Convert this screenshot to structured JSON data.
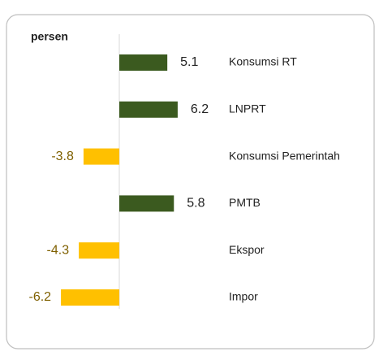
{
  "chart_data": {
    "type": "bar",
    "orientation": "horizontal",
    "unit_label": "persen",
    "categories": [
      "Konsumsi RT",
      "LNPRT",
      "Konsumsi Pemerintah",
      "PMTB",
      "Ekspor",
      "Impor"
    ],
    "values": [
      5.1,
      6.2,
      -3.8,
      5.8,
      -4.3,
      -6.2
    ],
    "colors": [
      "#3b5a1f",
      "#3b5a1f",
      "#ffc000",
      "#3b5a1f",
      "#ffc000",
      "#ffc000"
    ]
  }
}
